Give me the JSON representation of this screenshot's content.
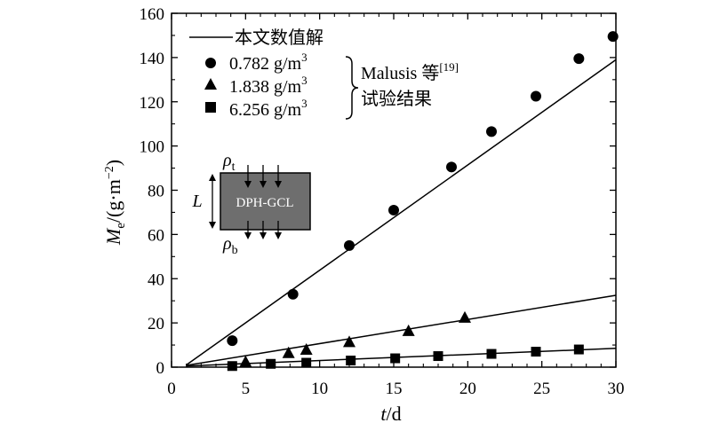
{
  "chart_data": {
    "type": "scatter",
    "xlabel": {
      "var": "t",
      "unit": "/d"
    },
    "ylabel": {
      "var": "M",
      "sub": "e",
      "unit_pre": "/(g·m",
      "unit_sup": "−2",
      "unit_post": ")"
    },
    "xlim": [
      0,
      30
    ],
    "ylim": [
      0,
      160
    ],
    "xticks": [
      "0",
      "5",
      "10",
      "15",
      "20",
      "25",
      "30"
    ],
    "yticks": [
      "0",
      "20",
      "40",
      "60",
      "80",
      "100",
      "120",
      "140",
      "160"
    ],
    "grid": false,
    "legend_position": "top-left",
    "legend_line_label": "本文数值解",
    "legend_group_label": "Malusis 等",
    "legend_group_ref": "[19]",
    "legend_group_label_line2": "试验结果",
    "series": [
      {
        "name": "0.782 g/m",
        "name_sup": "3",
        "marker": "circle",
        "points": [
          [
            4.1,
            12
          ],
          [
            8.2,
            33
          ],
          [
            12,
            55
          ],
          [
            15,
            71
          ],
          [
            18.9,
            90.5
          ],
          [
            21.6,
            106.5
          ],
          [
            24.6,
            122.5
          ],
          [
            27.5,
            139.5
          ],
          [
            29.8,
            149.5
          ]
        ],
        "fit_line": [
          [
            1,
            1
          ],
          [
            30,
            139
          ]
        ]
      },
      {
        "name": "1.838 g/m",
        "name_sup": "3",
        "marker": "triangle",
        "points": [
          [
            5,
            2.5
          ],
          [
            7.9,
            6.5
          ],
          [
            9.1,
            8
          ],
          [
            12,
            11.5
          ],
          [
            16,
            16.5
          ],
          [
            19.8,
            22.5
          ]
        ],
        "fit_line": [
          [
            1,
            0.8
          ],
          [
            30,
            32.5
          ]
        ]
      },
      {
        "name": "6.256 g/m",
        "name_sup": "3",
        "marker": "square",
        "points": [
          [
            4.1,
            0.5
          ],
          [
            6.7,
            1.5
          ],
          [
            9.1,
            2
          ],
          [
            12.1,
            3
          ],
          [
            15.1,
            4
          ],
          [
            18,
            5
          ],
          [
            21.6,
            6
          ],
          [
            24.6,
            7
          ],
          [
            27.5,
            8
          ]
        ],
        "fit_line": [
          [
            1,
            0.5
          ],
          [
            30,
            8.5
          ]
        ]
      }
    ],
    "inset": {
      "label": "DPH-GCL",
      "top_label": "ρ",
      "top_sub": "t",
      "bottom_label": "ρ",
      "bottom_sub": "b",
      "thickness_label": "L"
    }
  }
}
